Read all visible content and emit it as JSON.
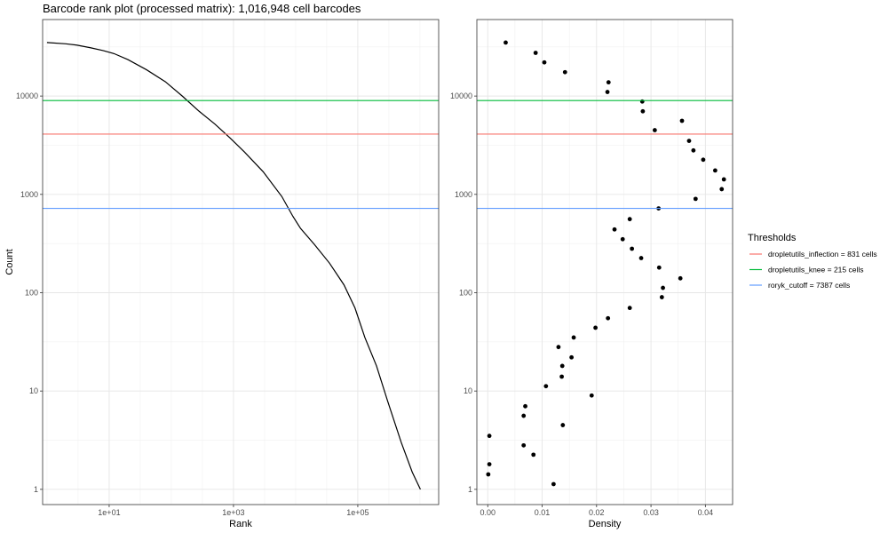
{
  "chart_data": [
    {
      "type": "line",
      "title": "Barcode rank plot (processed matrix): 1,016,948 cell barcodes",
      "xlabel": "Rank",
      "ylabel": "Count",
      "x_scale": "log10",
      "y_scale": "log10",
      "xlim": [
        0.85,
        2000000
      ],
      "ylim": [
        0.7,
        60000
      ],
      "x_ticks": [
        10,
        1000,
        100000
      ],
      "x_tick_labels": [
        "1e+01",
        "1e+03",
        "1e+05"
      ],
      "y_ticks": [
        1,
        10,
        100,
        1000,
        10000
      ],
      "y_tick_labels": [
        "1",
        "10",
        "100",
        "1000",
        "10000"
      ],
      "grid": true,
      "series": [
        {
          "color": "#000000",
          "x": [
            1,
            2,
            3,
            5,
            8,
            12,
            20,
            40,
            80,
            150,
            280,
            500,
            900,
            1500,
            3000,
            6000,
            9000,
            12000,
            20000,
            35000,
            60000,
            90000,
            130000,
            200000,
            300000,
            500000,
            750000,
            1016948
          ],
          "y": [
            35000,
            34000,
            33000,
            31000,
            29000,
            27000,
            23500,
            18500,
            14000,
            10000,
            7000,
            5200,
            3700,
            2700,
            1700,
            950,
            600,
            450,
            310,
            200,
            120,
            70,
            35,
            18,
            8,
            3,
            1.5,
            1
          ]
        }
      ],
      "hlines": [
        {
          "name": "dropletutils_inflection = 831 cells",
          "y": 4100,
          "color": "#F8766D"
        },
        {
          "name": "dropletutils_knee = 215 cells",
          "y": 9000,
          "color": "#00BA38"
        },
        {
          "name": "roryk_cutoff = 7387 cells",
          "y": 720,
          "color": "#619CFF"
        }
      ]
    },
    {
      "type": "scatter",
      "xlabel": "Density",
      "x_scale": "linear",
      "y_scale": "log10",
      "xlim": [
        -0.002,
        0.045
      ],
      "ylim": [
        0.7,
        60000
      ],
      "x_ticks": [
        0,
        0.01,
        0.02,
        0.03,
        0.04
      ],
      "x_tick_labels": [
        "0.00",
        "0.01",
        "0.02",
        "0.03",
        "0.04"
      ],
      "y_ticks": [
        1,
        10,
        100,
        1000,
        10000
      ],
      "y_tick_labels": [
        "1",
        "10",
        "100",
        "1000",
        "10000"
      ],
      "grid": true,
      "points": [
        [
          0.0033,
          35000
        ],
        [
          0.0088,
          27500
        ],
        [
          0.0104,
          22000
        ],
        [
          0.0142,
          17500
        ],
        [
          0.0222,
          13800
        ],
        [
          0.022,
          11000
        ],
        [
          0.0284,
          8800
        ],
        [
          0.0285,
          7000
        ],
        [
          0.0357,
          5600
        ],
        [
          0.0307,
          4500
        ],
        [
          0.037,
          3500
        ],
        [
          0.0378,
          2800
        ],
        [
          0.0396,
          2250
        ],
        [
          0.0418,
          1750
        ],
        [
          0.0434,
          1420
        ],
        [
          0.043,
          1130
        ],
        [
          0.0382,
          900
        ],
        [
          0.0314,
          720
        ],
        [
          0.0261,
          560
        ],
        [
          0.0233,
          440
        ],
        [
          0.0248,
          350
        ],
        [
          0.0265,
          280
        ],
        [
          0.0282,
          225
        ],
        [
          0.0315,
          180
        ],
        [
          0.0354,
          140
        ],
        [
          0.0322,
          112
        ],
        [
          0.032,
          90
        ],
        [
          0.0261,
          70
        ],
        [
          0.0221,
          55
        ],
        [
          0.0198,
          44
        ],
        [
          0.0158,
          35
        ],
        [
          0.013,
          28
        ],
        [
          0.0154,
          22
        ],
        [
          0.0137,
          18
        ],
        [
          0.0136,
          14
        ],
        [
          0.0107,
          11.2
        ],
        [
          0.0191,
          9
        ],
        [
          0.0069,
          7
        ],
        [
          0.0066,
          5.6
        ],
        [
          0.0138,
          4.5
        ],
        [
          0.0003,
          3.5
        ],
        [
          0.0066,
          2.8
        ],
        [
          0.0084,
          2.25
        ],
        [
          0.0003,
          1.8
        ],
        [
          0.0001,
          1.42
        ],
        [
          0.0121,
          1.13
        ]
      ],
      "hlines": [
        {
          "name": "dropletutils_inflection = 831 cells",
          "y": 4100,
          "color": "#F8766D"
        },
        {
          "name": "dropletutils_knee = 215 cells",
          "y": 9000,
          "color": "#00BA38"
        },
        {
          "name": "roryk_cutoff = 7387 cells",
          "y": 720,
          "color": "#619CFF"
        }
      ]
    }
  ],
  "legend": {
    "title": "Thresholds",
    "placement": "right",
    "items": [
      {
        "label": "dropletutils_inflection = 831 cells",
        "color": "#F8766D"
      },
      {
        "label": "dropletutils_knee = 215 cells",
        "color": "#00BA38"
      },
      {
        "label": "roryk_cutoff = 7387 cells",
        "color": "#619CFF"
      }
    ]
  }
}
